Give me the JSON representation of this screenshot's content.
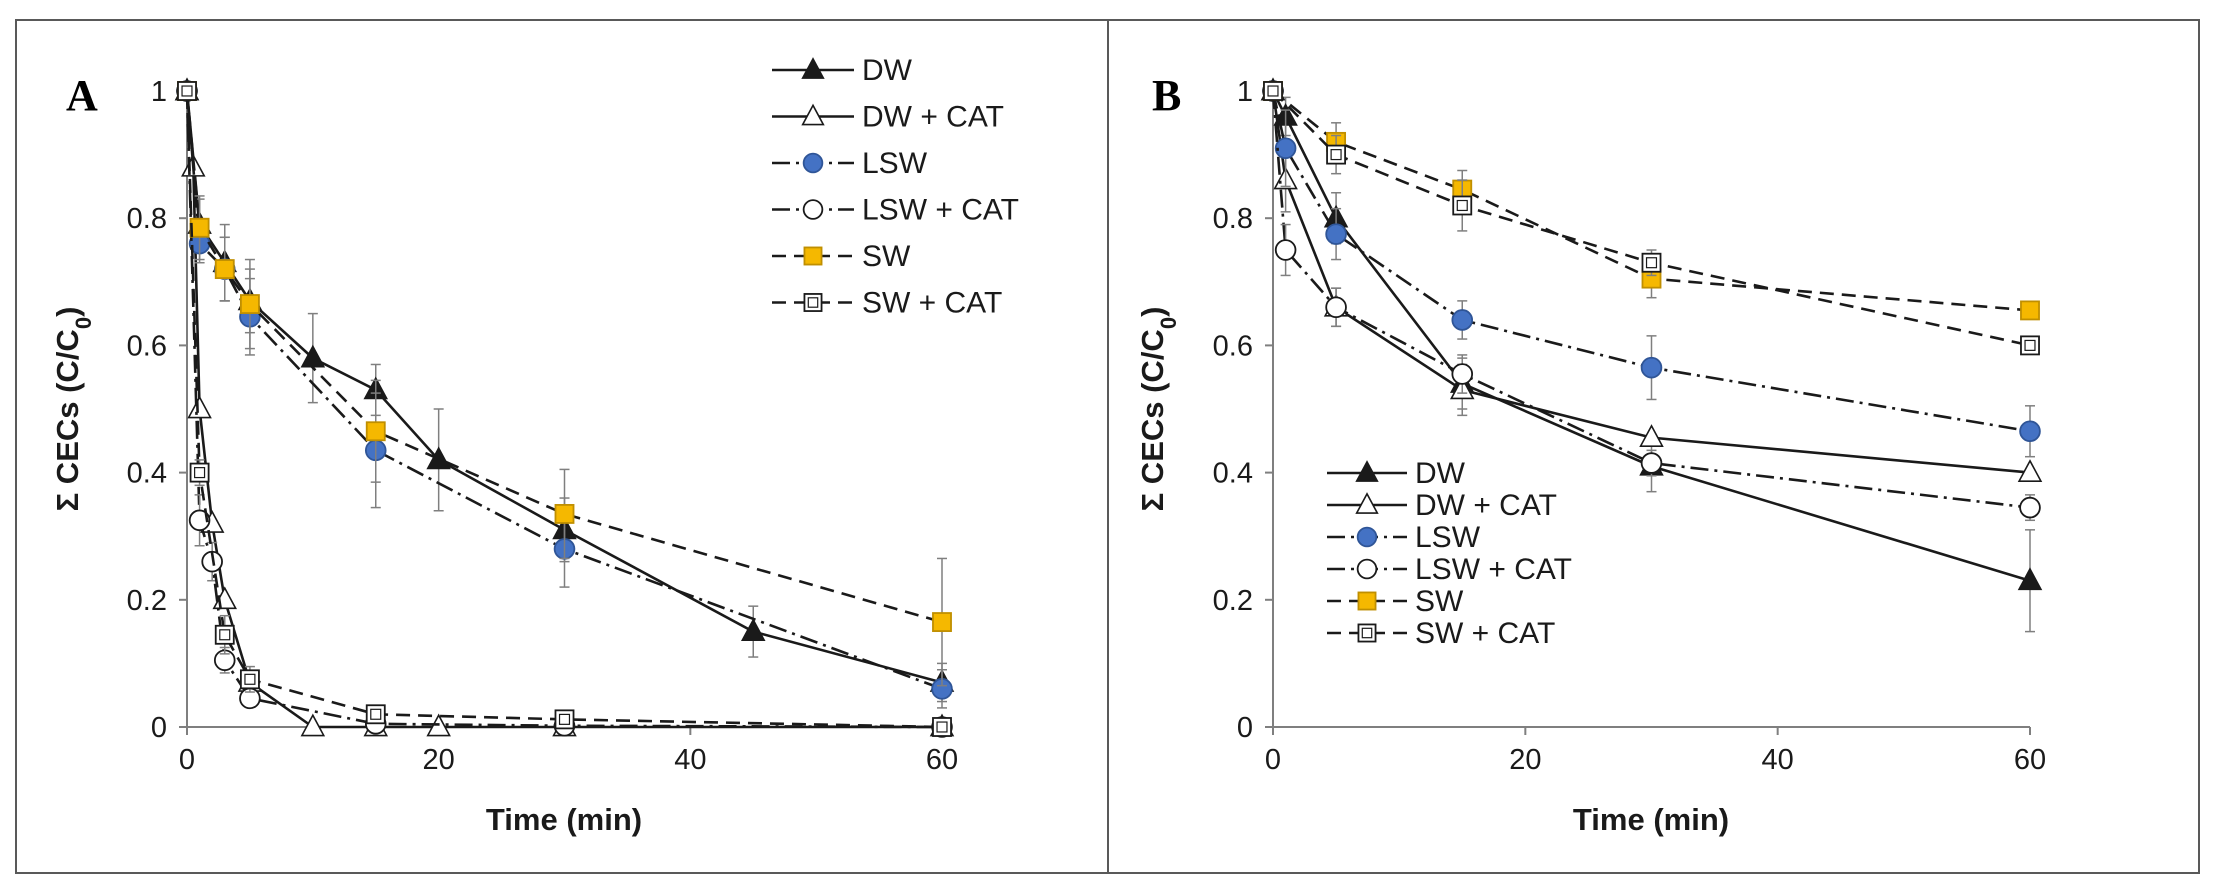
{
  "chart_data": [
    {
      "panel_label": "A",
      "type": "line",
      "xlabel": "Time (min)",
      "ylabel_main": "Σ CECs (C/C",
      "ylabel_sub": "0",
      "ylabel_end": ")",
      "xlim": [
        0,
        60
      ],
      "ylim": [
        0,
        1
      ],
      "x_ticks": [
        0,
        20,
        40,
        60
      ],
      "y_ticks": [
        0,
        0.2,
        0.4,
        0.6,
        0.8,
        1
      ],
      "y_tick_labels": [
        "0",
        "0.2",
        "0.4",
        "0.6",
        "0.8",
        "1"
      ],
      "legend_position": "top-right",
      "series": [
        {
          "name": "DW",
          "marker": "triangle-filled",
          "dash": "solid",
          "x": [
            0,
            1,
            3,
            5,
            10,
            15,
            20,
            30,
            45,
            60
          ],
          "y": [
            1,
            0.79,
            0.73,
            0.67,
            0.58,
            0.53,
            0.42,
            0.31,
            0.15,
            0.07
          ],
          "err": [
            0,
            0.04,
            0.06,
            0.05,
            0.07,
            0.04,
            0.08,
            0.05,
            0.04,
            0.03
          ]
        },
        {
          "name": "DW + CAT",
          "marker": "triangle-open",
          "dash": "solid",
          "x": [
            0,
            0.5,
            1,
            2,
            3,
            5,
            10,
            15,
            20,
            30,
            60
          ],
          "y": [
            1,
            0.88,
            0.5,
            0.32,
            0.2,
            0.07,
            0.0,
            0.0,
            0.0,
            0.0,
            0.0
          ],
          "err": [
            0,
            0,
            0,
            0,
            0,
            0,
            0,
            0,
            0,
            0,
            0
          ]
        },
        {
          "name": "LSW",
          "marker": "circle-filled",
          "dash": "dashdot",
          "x": [
            0,
            1,
            3,
            5,
            15,
            30,
            60
          ],
          "y": [
            1,
            0.76,
            0.72,
            0.645,
            0.435,
            0.28,
            0.06
          ],
          "err": [
            0,
            0.03,
            0.05,
            0.06,
            0.09,
            0.06,
            0.03
          ]
        },
        {
          "name": "LSW + CAT",
          "marker": "circle-open",
          "dash": "dashdot",
          "x": [
            0,
            1,
            2,
            3,
            5,
            15,
            30,
            60
          ],
          "y": [
            1,
            0.325,
            0.26,
            0.105,
            0.045,
            0.005,
            0.002,
            0.0
          ],
          "err": [
            0,
            0.04,
            0.03,
            0.02,
            0.01,
            0,
            0,
            0
          ]
        },
        {
          "name": "SW",
          "marker": "square-filled",
          "dash": "dashed",
          "x": [
            0,
            1,
            3,
            5,
            15,
            30,
            60
          ],
          "y": [
            1,
            0.785,
            0.72,
            0.665,
            0.465,
            0.335,
            0.165
          ],
          "err": [
            0,
            0.05,
            0.05,
            0.07,
            0.08,
            0.07,
            0.1
          ]
        },
        {
          "name": "SW + CAT",
          "marker": "square-open",
          "dash": "dashed",
          "x": [
            0,
            1,
            3,
            5,
            15,
            30,
            60
          ],
          "y": [
            1,
            0.4,
            0.145,
            0.075,
            0.02,
            0.012,
            0.0
          ],
          "err": [
            0,
            0.02,
            0.03,
            0.02,
            0.01,
            0,
            0
          ]
        }
      ]
    },
    {
      "panel_label": "B",
      "type": "line",
      "xlabel": "Time (min)",
      "ylabel_main": "Σ CECs (C/C",
      "ylabel_sub": "0",
      "ylabel_end": ")",
      "xlim": [
        0,
        60
      ],
      "ylim": [
        0,
        1
      ],
      "x_ticks": [
        0,
        20,
        40,
        60
      ],
      "y_ticks": [
        0,
        0.2,
        0.4,
        0.6,
        0.8,
        1
      ],
      "y_tick_labels": [
        "0",
        "0.2",
        "0.4",
        "0.6",
        "0.8",
        "1"
      ],
      "legend_position": "bottom-left",
      "series": [
        {
          "name": "DW",
          "marker": "triangle-filled",
          "dash": "solid",
          "x": [
            0,
            1,
            5,
            15,
            30,
            60
          ],
          "y": [
            1,
            0.96,
            0.8,
            0.54,
            0.41,
            0.23
          ],
          "err": [
            0,
            0.03,
            0.04,
            0.04,
            0.04,
            0.08
          ]
        },
        {
          "name": "DW + CAT",
          "marker": "triangle-open",
          "dash": "solid",
          "x": [
            0,
            1,
            5,
            15,
            30,
            60
          ],
          "y": [
            1,
            0.86,
            0.66,
            0.53,
            0.455,
            0.4
          ],
          "err": [
            0,
            0.05,
            0.03,
            0.04,
            0,
            0
          ]
        },
        {
          "name": "LSW",
          "marker": "circle-filled",
          "dash": "dashdot",
          "x": [
            0,
            1,
            5,
            15,
            30,
            60
          ],
          "y": [
            1,
            0.91,
            0.775,
            0.64,
            0.565,
            0.465
          ],
          "err": [
            0,
            0.06,
            0.04,
            0.03,
            0.05,
            0.04
          ]
        },
        {
          "name": "LSW + CAT",
          "marker": "circle-open",
          "dash": "dashdot",
          "x": [
            0,
            1,
            5,
            15,
            30,
            60
          ],
          "y": [
            1,
            0.75,
            0.66,
            0.555,
            0.415,
            0.345
          ],
          "err": [
            0,
            0.04,
            0.03,
            0.03,
            0.02,
            0.02
          ]
        },
        {
          "name": "SW",
          "marker": "square-filled",
          "dash": "dashed",
          "x": [
            0,
            5,
            15,
            30,
            60
          ],
          "y": [
            1,
            0.92,
            0.845,
            0.705,
            0.655
          ],
          "err": [
            0,
            0.03,
            0.03,
            0.03,
            0.01
          ]
        },
        {
          "name": "SW + CAT",
          "marker": "square-open",
          "dash": "dashed",
          "x": [
            0,
            5,
            15,
            30,
            60
          ],
          "y": [
            1,
            0.9,
            0.82,
            0.73,
            0.6
          ],
          "err": [
            0,
            0.03,
            0.04,
            0.02,
            0.01
          ]
        }
      ]
    }
  ],
  "colors": {
    "line": "#1a1a1a",
    "lsw_marker": "#4472c4",
    "sw_marker": "#f5b800",
    "frame": "#595959"
  }
}
